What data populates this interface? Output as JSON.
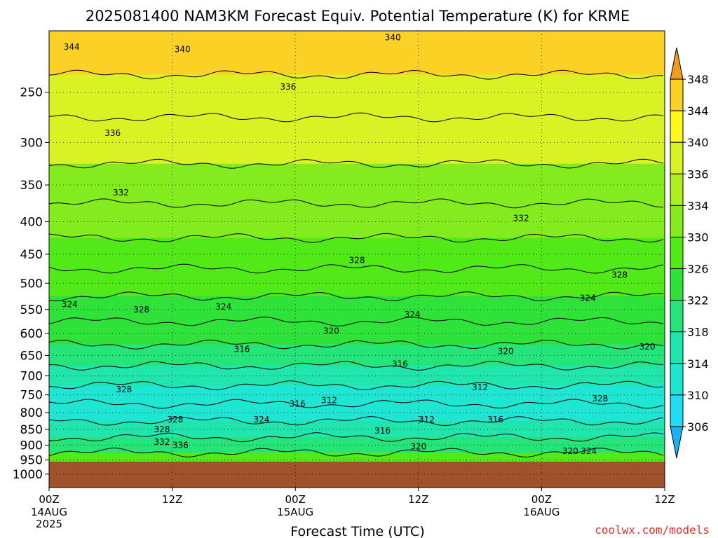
{
  "chart_data": {
    "type": "heatmap",
    "title": "2025081400 NAM3KM Forecast Equiv. Potential Temperature (K) for KRME",
    "xlabel": "Forecast Time (UTC)",
    "ylabel": "",
    "x_ticks": [
      {
        "hour": 0,
        "label": "00Z",
        "sub": "14AUG",
        "sub2": "2025"
      },
      {
        "hour": 12,
        "label": "12Z",
        "sub": "",
        "sub2": ""
      },
      {
        "hour": 24,
        "label": "00Z",
        "sub": "15AUG",
        "sub2": ""
      },
      {
        "hour": 36,
        "label": "12Z",
        "sub": "",
        "sub2": ""
      },
      {
        "hour": 48,
        "label": "00Z",
        "sub": "16AUG",
        "sub2": ""
      },
      {
        "hour": 60,
        "label": "12Z",
        "sub": "",
        "sub2": ""
      }
    ],
    "xlim": [
      0,
      60
    ],
    "y_ticks": [
      250,
      300,
      350,
      400,
      450,
      500,
      550,
      600,
      650,
      700,
      750,
      800,
      850,
      900,
      950,
      1000
    ],
    "ylim": [
      200,
      1050
    ],
    "y_scale": "log",
    "grid": true,
    "colorbar": {
      "labels": [
        348,
        344,
        340,
        336,
        334,
        330,
        326,
        322,
        318,
        314,
        310,
        306
      ],
      "colors": [
        "#f39a1f",
        "#fcd126",
        "#fdf81a",
        "#d9f224",
        "#adef20",
        "#83eb1e",
        "#52e919",
        "#2ee23a",
        "#25e47a",
        "#20e5ac",
        "#1fe5d3",
        "#23dbf2",
        "#1ab3f0"
      ]
    },
    "theta_e_profile": [
      {
        "pressure": 220,
        "value": 344
      },
      {
        "pressure": 250,
        "value": 338
      },
      {
        "pressure": 300,
        "value": 336
      },
      {
        "pressure": 350,
        "value": 333
      },
      {
        "pressure": 400,
        "value": 331
      },
      {
        "pressure": 450,
        "value": 329
      },
      {
        "pressure": 500,
        "value": 327
      },
      {
        "pressure": 550,
        "value": 325
      },
      {
        "pressure": 600,
        "value": 322
      },
      {
        "pressure": 650,
        "value": 319
      },
      {
        "pressure": 700,
        "value": 316
      },
      {
        "pressure": 750,
        "value": 313
      },
      {
        "pressure": 800,
        "value": 311
      },
      {
        "pressure": 850,
        "value": 315
      },
      {
        "pressure": 900,
        "value": 320
      },
      {
        "pressure": 950,
        "value": 326
      }
    ],
    "contour_labels": [
      {
        "value": "344",
        "hour": 2.2,
        "pressure": 212
      },
      {
        "value": "340",
        "hour": 13,
        "pressure": 214
      },
      {
        "value": "340",
        "hour": 33.5,
        "pressure": 205
      },
      {
        "value": "336",
        "hour": 23.3,
        "pressure": 245
      },
      {
        "value": "336",
        "hour": 6.2,
        "pressure": 290
      },
      {
        "value": "332",
        "hour": 7,
        "pressure": 360
      },
      {
        "value": "332",
        "hour": 46,
        "pressure": 395
      },
      {
        "value": "328",
        "hour": 30,
        "pressure": 460
      },
      {
        "value": "328",
        "hour": 55.6,
        "pressure": 485
      },
      {
        "value": "324",
        "hour": 2,
        "pressure": 540
      },
      {
        "value": "328",
        "hour": 9,
        "pressure": 550
      },
      {
        "value": "324",
        "hour": 17,
        "pressure": 545
      },
      {
        "value": "324",
        "hour": 35.4,
        "pressure": 560
      },
      {
        "value": "324",
        "hour": 52.5,
        "pressure": 528
      },
      {
        "value": "320",
        "hour": 27.5,
        "pressure": 595
      },
      {
        "value": "320",
        "hour": 44.5,
        "pressure": 640
      },
      {
        "value": "320",
        "hour": 58.3,
        "pressure": 630
      },
      {
        "value": "316",
        "hour": 18.8,
        "pressure": 635
      },
      {
        "value": "316",
        "hour": 34.2,
        "pressure": 670
      },
      {
        "value": "312",
        "hour": 42,
        "pressure": 730
      },
      {
        "value": "312",
        "hour": 27.3,
        "pressure": 765
      },
      {
        "value": "316",
        "hour": 24.2,
        "pressure": 775
      },
      {
        "value": "312",
        "hour": 36.8,
        "pressure": 820
      },
      {
        "value": "316",
        "hour": 43.5,
        "pressure": 820
      },
      {
        "value": "316",
        "hour": 32.5,
        "pressure": 855
      },
      {
        "value": "328",
        "hour": 7.3,
        "pressure": 735
      },
      {
        "value": "328",
        "hour": 12.3,
        "pressure": 820
      },
      {
        "value": "328",
        "hour": 11,
        "pressure": 850
      },
      {
        "value": "324",
        "hour": 20.7,
        "pressure": 820
      },
      {
        "value": "332",
        "hour": 11,
        "pressure": 890
      },
      {
        "value": "336",
        "hour": 12.8,
        "pressure": 900
      },
      {
        "value": "320",
        "hour": 36,
        "pressure": 905
      },
      {
        "value": "328",
        "hour": 53.7,
        "pressure": 760
      },
      {
        "value": "320",
        "hour": 50.8,
        "pressure": 920
      },
      {
        "value": "324",
        "hour": 52.6,
        "pressure": 920
      }
    ]
  },
  "credit": "coolwx.com/models"
}
